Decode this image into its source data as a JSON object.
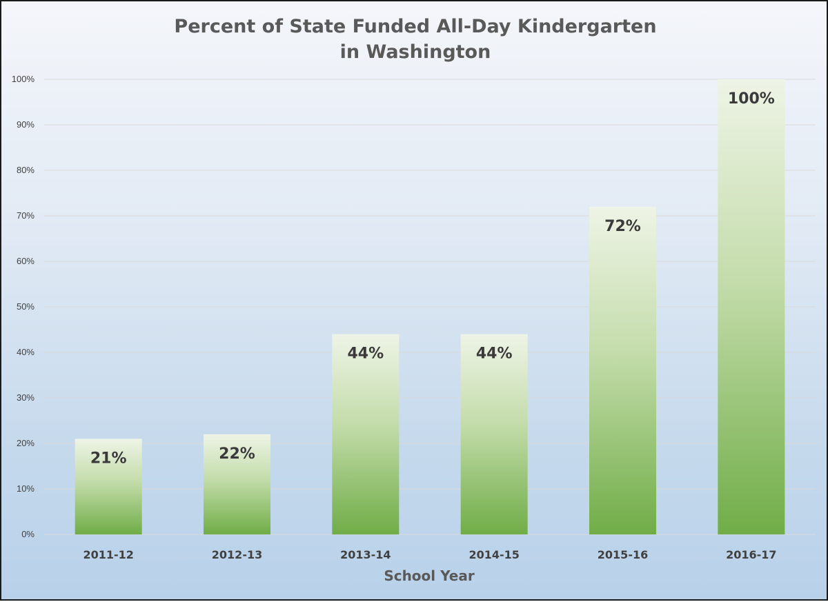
{
  "chart_data": {
    "type": "bar",
    "title": "Percent of State Funded All-Day Kindergarten in Washington",
    "title_lines": [
      "Percent of State Funded All-Day Kindergarten",
      "in Washington"
    ],
    "xlabel": "School Year",
    "ylabel": "",
    "categories": [
      "2011-12",
      "2012-13",
      "2013-14",
      "2014-15",
      "2015-16",
      "2016-17"
    ],
    "values": [
      21,
      22,
      44,
      44,
      72,
      100
    ],
    "data_labels": [
      "21%",
      "22%",
      "44%",
      "44%",
      "72%",
      "100%"
    ],
    "ylim": [
      0,
      100
    ],
    "y_ticks": [
      0,
      10,
      20,
      30,
      40,
      50,
      60,
      70,
      80,
      90,
      100
    ],
    "y_tick_labels": [
      "0%",
      "10%",
      "20%",
      "30%",
      "40%",
      "50%",
      "60%",
      "70%",
      "80%",
      "90%",
      "100%"
    ],
    "grid": true,
    "legend": "none",
    "colors": {
      "bar_top": "#eef4e6",
      "bar_bottom": "#70ad47",
      "gridline": "#d9d9d9",
      "title": "#595959"
    }
  }
}
